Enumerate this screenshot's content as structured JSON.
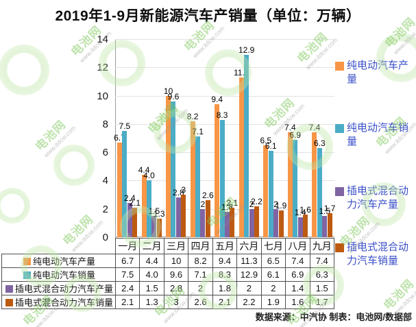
{
  "title": "2019年1-9月新能源汽车产销量（单位：万辆）",
  "footer": "数据来源：中汽协  制表：电池网/数据部",
  "watermark": {
    "brand": "电池网",
    "url": "www.itdcw.com"
  },
  "colors": {
    "legend_text": "#3A4FC8",
    "axis": "#999999",
    "grid": "#e2e2e2",
    "table_border": "#4d4d4d"
  },
  "chart_data": {
    "type": "bar",
    "title": "2019年1-9月新能源汽车产销量（单位：万辆）",
    "categories": [
      "一月",
      "二月",
      "三月",
      "四月",
      "五月",
      "六月",
      "七月",
      "八月",
      "九月"
    ],
    "series": [
      {
        "name": "纯电动汽车产量",
        "color": "#F79646",
        "values": [
          6.7,
          4.4,
          10,
          8.2,
          9.4,
          11.3,
          6.5,
          7.4,
          7.4
        ],
        "labels": [
          "6.7",
          "4.4",
          "10",
          "8.2",
          "9.4",
          "11.3",
          "6.5",
          "7.4",
          "7.4"
        ]
      },
      {
        "name": "纯电动汽车销量",
        "color": "#4BACC6",
        "values": [
          7.5,
          4.0,
          9.6,
          7.1,
          8.3,
          12.9,
          6.1,
          6.9,
          6.3
        ],
        "labels": [
          "7.5",
          "4.0",
          "9.6",
          "7.1",
          "8.3",
          "12.9",
          "6.1",
          "6.9",
          "6.3"
        ]
      },
      {
        "name": "插电式混合动力汽车产量",
        "color": "#8064A2",
        "values": [
          2.4,
          1.5,
          2.8,
          2,
          1.8,
          2,
          2,
          1.4,
          1.5
        ],
        "labels": [
          "2.4",
          "1.5",
          "2.8",
          "2",
          "1.8",
          "2",
          "2",
          "1.4",
          "1.5"
        ]
      },
      {
        "name": "插电式混合动力汽车销量",
        "color": "#BD5A11",
        "values": [
          2.1,
          1.3,
          3,
          2.6,
          2.1,
          2.2,
          1.9,
          1.6,
          1.7
        ],
        "labels": [
          "2.1",
          "1.3",
          "3",
          "2.6",
          "2.1",
          "2.2",
          "1.9",
          "1.6",
          "1.7"
        ]
      }
    ],
    "xlabel": "",
    "ylabel": "",
    "ylim": [
      0,
      14
    ],
    "yticks": [
      0,
      2,
      4,
      6,
      8,
      10,
      12,
      14
    ],
    "grid": true,
    "legend_position": "right"
  }
}
